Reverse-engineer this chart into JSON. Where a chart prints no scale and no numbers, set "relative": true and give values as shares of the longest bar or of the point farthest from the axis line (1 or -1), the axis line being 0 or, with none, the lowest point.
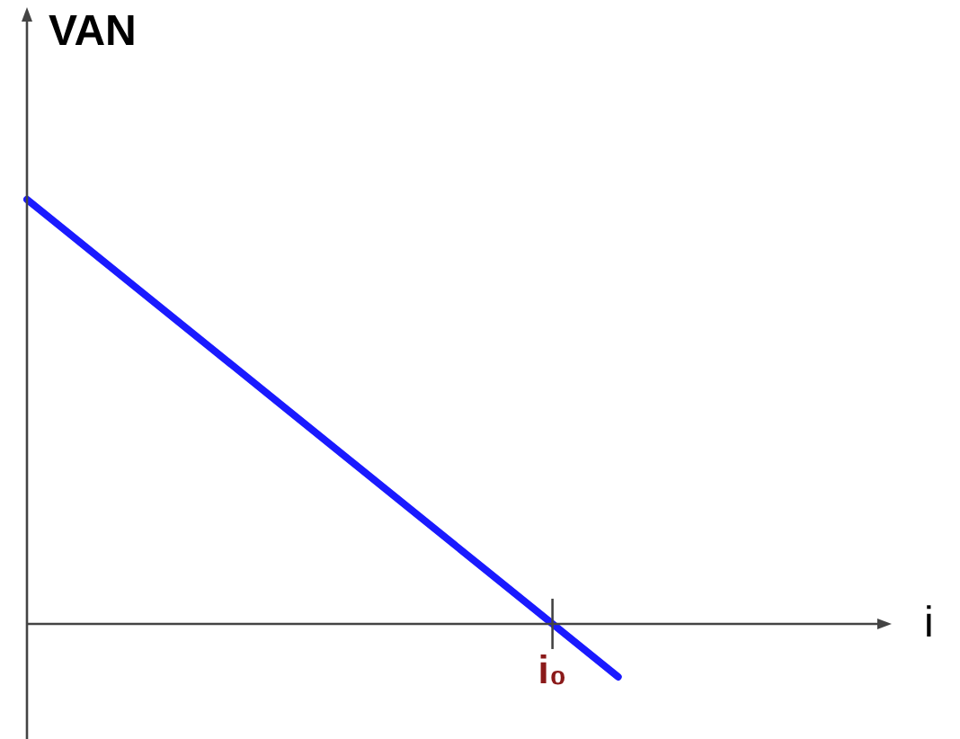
{
  "chart_data": {
    "type": "line",
    "relative": true,
    "xlabel": "i",
    "ylabel": "VAN",
    "categories": [
      null,
      null,
      null,
      null,
      null,
      null,
      null,
      null,
      null,
      null,
      null,
      null,
      null,
      null
    ],
    "annotations": [
      "i₀"
    ],
    "series": [
      {
        "color": "#1a1aff",
        "values": [
          1,
          0.875,
          0.75,
          0.625,
          0.5,
          0.375,
          0.25,
          0.125,
          0,
          -0.125,
          null,
          null,
          null,
          null
        ]
      }
    ],
    "legend": false,
    "grid": false,
    "marker": "none",
    "line_style": "solid"
  }
}
